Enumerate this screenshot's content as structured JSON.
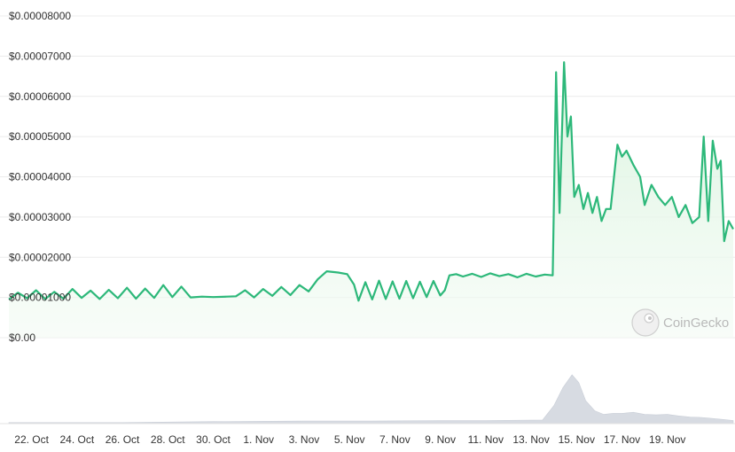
{
  "chart_data": {
    "type": "area",
    "y_ticks": [
      "$0.00",
      "$0.00001000",
      "$0.00002000",
      "$0.00003000",
      "$0.00004000",
      "$0.00005000",
      "$0.00006000",
      "$0.00007000",
      "$0.00008000"
    ],
    "ylim": [
      0,
      8e-05
    ],
    "x_ticks": [
      "22. Oct",
      "24. Oct",
      "26. Oct",
      "28. Oct",
      "30. Oct",
      "1. Nov",
      "3. Nov",
      "5. Nov",
      "7. Nov",
      "9. Nov",
      "11. Nov",
      "13. Nov",
      "15. Nov",
      "17. Nov",
      "19. Nov"
    ],
    "x_range_days": [
      -1,
      30.9
    ],
    "series": [
      {
        "values": [
          [
            -1,
            9.5e-06
          ],
          [
            -0.6,
            1.12e-05
          ],
          [
            -0.2,
            9.8e-06
          ],
          [
            0.2,
            1.18e-05
          ],
          [
            0.6,
            9.6e-06
          ],
          [
            1,
            1.14e-05
          ],
          [
            1.4,
            9.7e-06
          ],
          [
            1.8,
            1.21e-05
          ],
          [
            2.2,
            9.9e-06
          ],
          [
            2.6,
            1.17e-05
          ],
          [
            3,
            9.6e-06
          ],
          [
            3.4,
            1.19e-05
          ],
          [
            3.8,
            9.8e-06
          ],
          [
            4.2,
            1.24e-05
          ],
          [
            4.6,
            9.7e-06
          ],
          [
            5,
            1.22e-05
          ],
          [
            5.4,
            9.9e-06
          ],
          [
            5.8,
            1.31e-05
          ],
          [
            6.2,
            1.01e-05
          ],
          [
            6.6,
            1.27e-05
          ],
          [
            7,
            1e-05
          ],
          [
            7.5,
            1.02e-05
          ],
          [
            8,
            1.01e-05
          ],
          [
            8.6,
            1.02e-05
          ],
          [
            9,
            1.03e-05
          ],
          [
            9.4,
            1.18e-05
          ],
          [
            9.8,
            1e-05
          ],
          [
            10.2,
            1.21e-05
          ],
          [
            10.6,
            1.04e-05
          ],
          [
            11,
            1.26e-05
          ],
          [
            11.4,
            1.06e-05
          ],
          [
            11.8,
            1.31e-05
          ],
          [
            12.2,
            1.15e-05
          ],
          [
            12.6,
            1.45e-05
          ],
          [
            13,
            1.65e-05
          ],
          [
            13.5,
            1.62e-05
          ],
          [
            13.9,
            1.58e-05
          ],
          [
            14.2,
            1.32e-05
          ],
          [
            14.4,
            9.2e-06
          ],
          [
            14.7,
            1.38e-05
          ],
          [
            15,
            9.5e-06
          ],
          [
            15.3,
            1.42e-05
          ],
          [
            15.6,
            9.6e-06
          ],
          [
            15.9,
            1.4e-05
          ],
          [
            16.2,
            9.7e-06
          ],
          [
            16.5,
            1.41e-05
          ],
          [
            16.8,
            9.8e-06
          ],
          [
            17.1,
            1.39e-05
          ],
          [
            17.4,
            1.01e-05
          ],
          [
            17.7,
            1.41e-05
          ],
          [
            18,
            1.05e-05
          ],
          [
            18.2,
            1.18e-05
          ],
          [
            18.4,
            1.55e-05
          ],
          [
            18.7,
            1.58e-05
          ],
          [
            19,
            1.52e-05
          ],
          [
            19.4,
            1.59e-05
          ],
          [
            19.8,
            1.51e-05
          ],
          [
            20.2,
            1.6e-05
          ],
          [
            20.6,
            1.53e-05
          ],
          [
            21,
            1.58e-05
          ],
          [
            21.4,
            1.5e-05
          ],
          [
            21.8,
            1.59e-05
          ],
          [
            22.2,
            1.52e-05
          ],
          [
            22.6,
            1.57e-05
          ],
          [
            22.95,
            1.55e-05
          ],
          [
            23.1,
            6.6e-05
          ],
          [
            23.25,
            3.1e-05
          ],
          [
            23.45,
            6.85e-05
          ],
          [
            23.6,
            5e-05
          ],
          [
            23.75,
            5.5e-05
          ],
          [
            23.9,
            3.5e-05
          ],
          [
            24.1,
            3.8e-05
          ],
          [
            24.3,
            3.2e-05
          ],
          [
            24.5,
            3.6e-05
          ],
          [
            24.7,
            3.1e-05
          ],
          [
            24.9,
            3.5e-05
          ],
          [
            25.1,
            2.9e-05
          ],
          [
            25.3,
            3.2e-05
          ],
          [
            25.5,
            3.2e-05
          ],
          [
            25.8,
            4.8e-05
          ],
          [
            26,
            4.5e-05
          ],
          [
            26.2,
            4.65e-05
          ],
          [
            26.5,
            4.3e-05
          ],
          [
            26.8,
            4e-05
          ],
          [
            27,
            3.3e-05
          ],
          [
            27.3,
            3.8e-05
          ],
          [
            27.6,
            3.5e-05
          ],
          [
            27.9,
            3.3e-05
          ],
          [
            28.2,
            3.5e-05
          ],
          [
            28.5,
            3e-05
          ],
          [
            28.8,
            3.3e-05
          ],
          [
            29.1,
            2.85e-05
          ],
          [
            29.4,
            3e-05
          ],
          [
            29.6,
            5e-05
          ],
          [
            29.8,
            2.9e-05
          ],
          [
            30,
            4.9e-05
          ],
          [
            30.2,
            4.2e-05
          ],
          [
            30.35,
            4.4e-05
          ],
          [
            30.5,
            2.4e-05
          ],
          [
            30.7,
            2.9e-05
          ],
          [
            30.9,
            2.7e-05
          ]
        ]
      }
    ],
    "volume": {
      "values": [
        [
          -1,
          0.02
        ],
        [
          4,
          0.02
        ],
        [
          8,
          0.04
        ],
        [
          12,
          0.05
        ],
        [
          15,
          0.05
        ],
        [
          18,
          0.06
        ],
        [
          20,
          0.06
        ],
        [
          22.5,
          0.07
        ],
        [
          23,
          0.35
        ],
        [
          23.4,
          0.7
        ],
        [
          23.8,
          0.95
        ],
        [
          24.1,
          0.8
        ],
        [
          24.4,
          0.45
        ],
        [
          24.8,
          0.25
        ],
        [
          25.2,
          0.18
        ],
        [
          25.6,
          0.2
        ],
        [
          26,
          0.2
        ],
        [
          26.5,
          0.22
        ],
        [
          27,
          0.18
        ],
        [
          27.5,
          0.17
        ],
        [
          28,
          0.18
        ],
        [
          28.5,
          0.15
        ],
        [
          29,
          0.13
        ],
        [
          29.5,
          0.12
        ],
        [
          30,
          0.1
        ],
        [
          30.5,
          0.08
        ],
        [
          30.9,
          0.06
        ]
      ]
    },
    "watermark": "CoinGecko",
    "colors": {
      "line": "#2db87a",
      "fill": "#e6f6e9",
      "volume": "#d7dbe2"
    },
    "grid": true
  }
}
